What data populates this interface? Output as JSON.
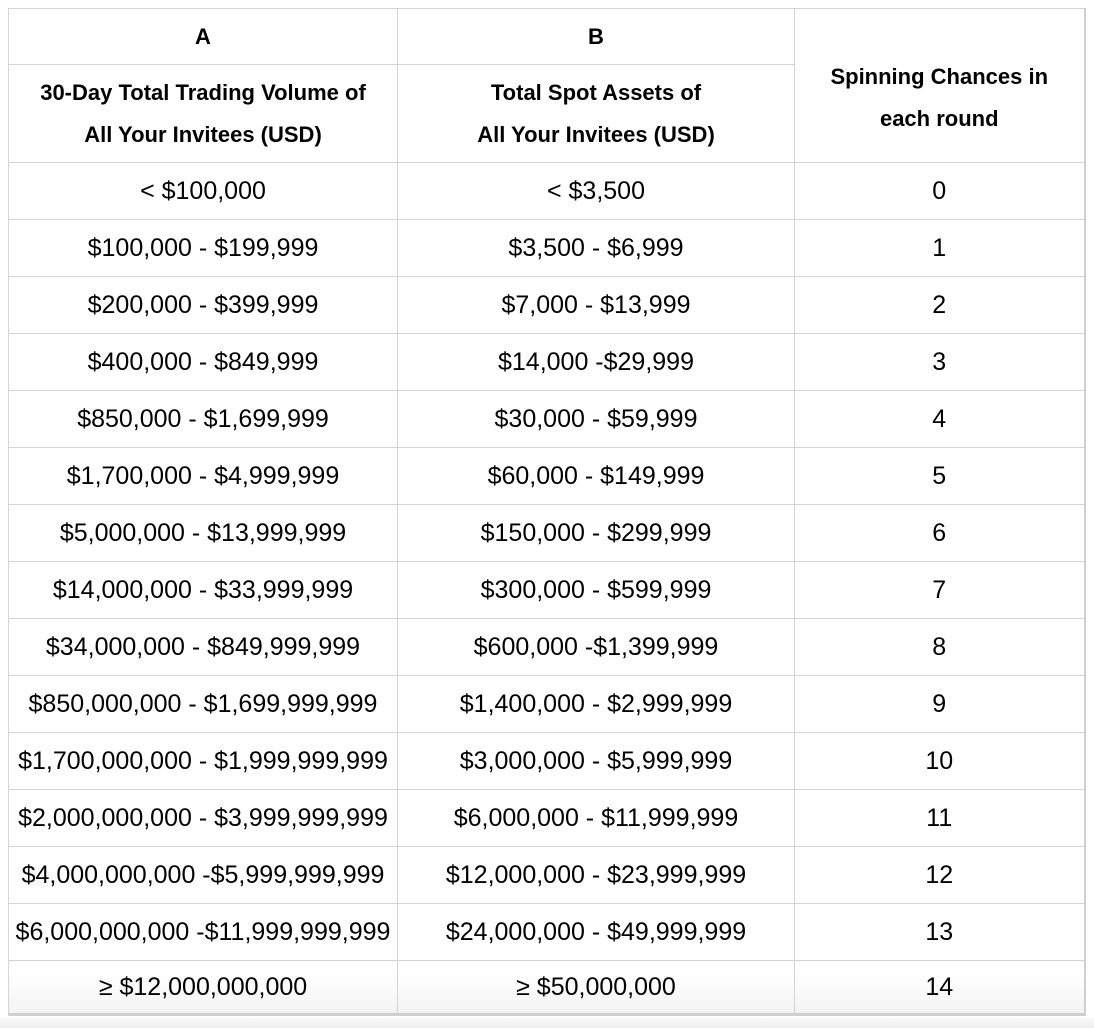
{
  "chart_data": {
    "type": "table",
    "group_headers": [
      "A",
      "B"
    ],
    "column_headers": [
      "30-Day Total Trading Volume of\nAll Your Invitees (USD)",
      "Total Spot Assets of\nAll Your Invitees (USD)",
      "Spinning Chances in\neach round"
    ],
    "rows": [
      [
        "< $100,000",
        "< $3,500",
        "0"
      ],
      [
        "$100,000 - $199,999",
        "$3,500 - $6,999",
        "1"
      ],
      [
        "$200,000 - $399,999",
        "$7,000 - $13,999",
        "2"
      ],
      [
        "$400,000 - $849,999",
        "$14,000 -$29,999",
        "3"
      ],
      [
        "$850,000 - $1,699,999",
        "$30,000 - $59,999",
        "4"
      ],
      [
        "$1,700,000 - $4,999,999",
        "$60,000 - $149,999",
        "5"
      ],
      [
        "$5,000,000 - $13,999,999",
        "$150,000 - $299,999",
        "6"
      ],
      [
        "$14,000,000 - $33,999,999",
        "$300,000 - $599,999",
        "7"
      ],
      [
        "$34,000,000 - $849,999,999",
        "$600,000 -$1,399,999",
        "8"
      ],
      [
        "$850,000,000 - $1,699,999,999",
        "$1,400,000 - $2,999,999",
        "9"
      ],
      [
        "$1,700,000,000 - $1,999,999,999",
        "$3,000,000 - $5,999,999",
        "10"
      ],
      [
        "$2,000,000,000 - $3,999,999,999",
        "$6,000,000 - $11,999,999",
        "11"
      ],
      [
        "$4,000,000,000 -$5,999,999,999",
        "$12,000,000 - $23,999,999",
        "12"
      ],
      [
        "$6,000,000,000 -$11,999,999,999",
        "$24,000,000 - $49,999,999",
        "13"
      ],
      [
        "≥ $12,000,000,000",
        "≥ $50,000,000",
        "14"
      ]
    ]
  },
  "colors": {
    "text": "#000000",
    "cell_border": "#d4d4d4",
    "outer_border": "#cfcfcf",
    "background": "#ffffff",
    "bottom_strip": "#eeeeee"
  }
}
